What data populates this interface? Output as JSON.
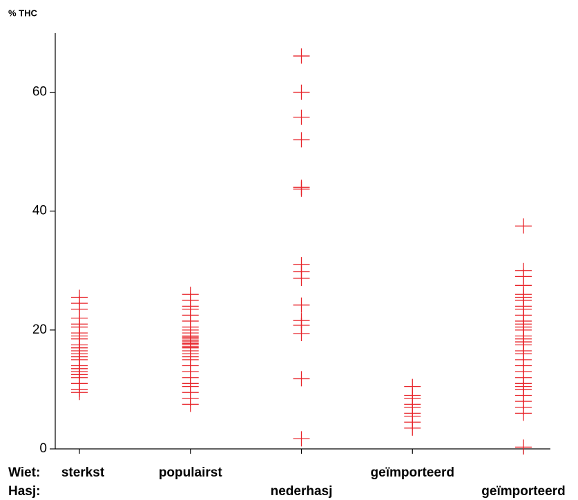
{
  "chart_data": {
    "type": "strip",
    "y_label": "% THC",
    "color": "#e8242a",
    "ylim": [
      0,
      70
    ],
    "yticks": [
      0,
      20,
      40,
      60
    ],
    "label_rows": [
      {
        "name": "Wiet:",
        "labels": [
          "sterkst",
          "populairst",
          null,
          "geïmporteerd",
          null
        ]
      },
      {
        "name": "Hasj:",
        "labels": [
          null,
          null,
          "nederhasj",
          null,
          "geïmporteerd"
        ]
      }
    ],
    "values": [
      [
        25.5,
        24.5,
        23.5,
        22,
        21,
        20.5,
        19.5,
        19,
        18.5,
        17.5,
        17,
        16.5,
        16,
        15.5,
        15,
        14,
        13.5,
        13,
        12.5,
        12,
        11,
        10,
        9.5
      ],
      [
        26,
        25,
        24,
        23.5,
        22.5,
        21.5,
        20.5,
        20,
        19.5,
        19,
        18.8,
        18.5,
        18.2,
        18,
        17.7,
        17.5,
        17.2,
        17,
        16.5,
        16,
        15.5,
        15,
        14,
        13,
        12,
        11,
        10.5,
        9.5,
        8.5,
        7.5
      ],
      [
        66.1,
        60,
        55.8,
        52,
        44,
        43.7,
        31,
        29.8,
        28.7,
        24.2,
        21.6,
        20.8,
        19.4,
        11.8,
        1.7
      ],
      [
        10.5,
        9,
        8.5,
        7.5,
        7,
        6,
        5.5,
        4.5,
        3.5
      ],
      [
        37.5,
        30,
        29,
        27.5,
        26,
        25.5,
        25,
        24,
        23.5,
        22.5,
        21.5,
        21,
        20.5,
        20,
        19,
        18.5,
        18,
        17.5,
        16.5,
        16,
        15,
        14,
        13,
        12,
        11,
        10.5,
        10,
        9,
        8,
        7,
        6,
        0.3
      ]
    ]
  }
}
